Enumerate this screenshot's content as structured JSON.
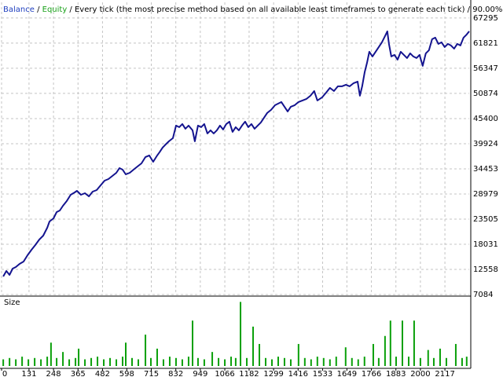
{
  "chart_data": [
    {
      "type": "line",
      "header": [
        {
          "text": "Balance",
          "color": "#1f3fbf"
        },
        {
          "text": "Equity",
          "color": "#18a018"
        }
      ],
      "separator": " / ",
      "subtitle": "Every tick (the most precise method based on all available least timeframes to generate each tick)",
      "quality": "90.00%",
      "color": "#14148f",
      "grid": true,
      "ylim": [
        7084,
        70700
      ],
      "yticks": [
        67295,
        61821,
        56347,
        50874,
        45400,
        39924,
        34453,
        28979,
        23505,
        18031,
        12558,
        7084
      ],
      "x": [
        8,
        23,
        38,
        53,
        68,
        86,
        105,
        124,
        143,
        161,
        180,
        199,
        218,
        229,
        248,
        263,
        278,
        293,
        311,
        330,
        349,
        360,
        379,
        398,
        417,
        435,
        454,
        473,
        492,
        510,
        529,
        548,
        563,
        578,
        593,
        612,
        630,
        649,
        668,
        687,
        705,
        724,
        743,
        754,
        769,
        780,
        799,
        818,
        833,
        848,
        863,
        878,
        893,
        912,
        923,
        938,
        953,
        968,
        983,
        998,
        1013,
        1028,
        1043,
        1058,
        1073,
        1088,
        1103,
        1118,
        1133,
        1148,
        1163,
        1178,
        1193,
        1208,
        1223,
        1238,
        1253,
        1268,
        1287,
        1306,
        1321,
        1336,
        1351,
        1366,
        1381,
        1400,
        1418,
        1437,
        1456,
        1475,
        1493,
        1508,
        1531,
        1550,
        1568,
        1587,
        1606,
        1625,
        1644,
        1662,
        1681,
        1700,
        1711,
        1722,
        1734,
        1745,
        1756,
        1771,
        1786,
        1801,
        1816,
        1831,
        1842,
        1850,
        1861,
        1876,
        1891,
        1906,
        1921,
        1936,
        1951,
        1966,
        1981,
        1996,
        2011,
        2026,
        2041,
        2056,
        2071,
        2086,
        2101,
        2116,
        2131,
        2146,
        2161,
        2176,
        2191,
        2206,
        2221,
        2233
      ],
      "values": [
        11018,
        12216,
        11361,
        12729,
        13071,
        13755,
        14269,
        15637,
        16834,
        17861,
        19058,
        19914,
        21624,
        22993,
        23677,
        25045,
        25387,
        26414,
        27440,
        28809,
        29322,
        29664,
        28809,
        29151,
        28467,
        29493,
        29835,
        30861,
        31888,
        32230,
        32914,
        33598,
        34625,
        34283,
        33256,
        33598,
        34283,
        34967,
        35651,
        37020,
        37362,
        35993,
        37362,
        38046,
        39072,
        39585,
        40441,
        41125,
        43862,
        43520,
        44204,
        43178,
        43862,
        42836,
        40441,
        43862,
        43520,
        44204,
        42151,
        42836,
        42151,
        42836,
        43862,
        43007,
        44204,
        44717,
        42493,
        43520,
        42836,
        43862,
        44717,
        43520,
        44204,
        43178,
        43862,
        44546,
        45573,
        46599,
        47283,
        48309,
        48652,
        48994,
        47967,
        46941,
        47967,
        48309,
        48994,
        49336,
        49678,
        50362,
        51389,
        49336,
        50020,
        51046,
        52073,
        51389,
        52415,
        52415,
        52757,
        52415,
        53099,
        53441,
        50362,
        52415,
        55494,
        57547,
        59942,
        58915,
        59942,
        60968,
        61994,
        63363,
        64389,
        61652,
        58915,
        59257,
        58231,
        59942,
        59257,
        58573,
        59599,
        58915,
        58573,
        59257,
        56862,
        59599,
        60284,
        62679,
        63021,
        61652,
        61994,
        60968,
        61652,
        61310,
        60626,
        61652,
        61310,
        63021,
        63705,
        64389
      ]
    },
    {
      "type": "bar",
      "title": "Size",
      "color": "#0aa00a",
      "ylim": [
        0,
        1
      ],
      "xlim": [
        0,
        2233
      ],
      "xticks": [
        0,
        131,
        248,
        365,
        482,
        598,
        715,
        832,
        949,
        1066,
        1182,
        1299,
        1416,
        1533,
        1649,
        1766,
        1883,
        2000,
        2117
      ],
      "x": [
        8,
        38,
        68,
        98,
        128,
        158,
        188,
        218,
        236,
        263,
        293,
        323,
        353,
        368,
        398,
        428,
        458,
        488,
        518,
        548,
        578,
        593,
        623,
        653,
        687,
        713,
        743,
        773,
        803,
        833,
        863,
        893,
        912,
        938,
        968,
        1006,
        1036,
        1066,
        1096,
        1118,
        1141,
        1171,
        1201,
        1231,
        1261,
        1291,
        1321,
        1351,
        1381,
        1418,
        1448,
        1478,
        1508,
        1538,
        1568,
        1598,
        1643,
        1673,
        1703,
        1733,
        1775,
        1801,
        1831,
        1857,
        1884,
        1914,
        1944,
        1970,
        2000,
        2037,
        2064,
        2094,
        2124,
        2169,
        2199,
        2221
      ],
      "values": [
        0.1,
        0.12,
        0.1,
        0.14,
        0.1,
        0.12,
        0.1,
        0.14,
        0.35,
        0.12,
        0.21,
        0.1,
        0.12,
        0.26,
        0.1,
        0.12,
        0.14,
        0.1,
        0.12,
        0.1,
        0.14,
        0.35,
        0.12,
        0.1,
        0.47,
        0.12,
        0.26,
        0.1,
        0.14,
        0.12,
        0.1,
        0.14,
        0.68,
        0.12,
        0.1,
        0.21,
        0.12,
        0.1,
        0.14,
        0.12,
        0.96,
        0.12,
        0.59,
        0.33,
        0.12,
        0.1,
        0.14,
        0.12,
        0.1,
        0.33,
        0.12,
        0.1,
        0.14,
        0.12,
        0.1,
        0.14,
        0.28,
        0.12,
        0.1,
        0.14,
        0.33,
        0.12,
        0.45,
        0.68,
        0.14,
        0.68,
        0.14,
        0.68,
        0.12,
        0.24,
        0.12,
        0.26,
        0.12,
        0.33,
        0.12,
        0.14
      ]
    }
  ]
}
